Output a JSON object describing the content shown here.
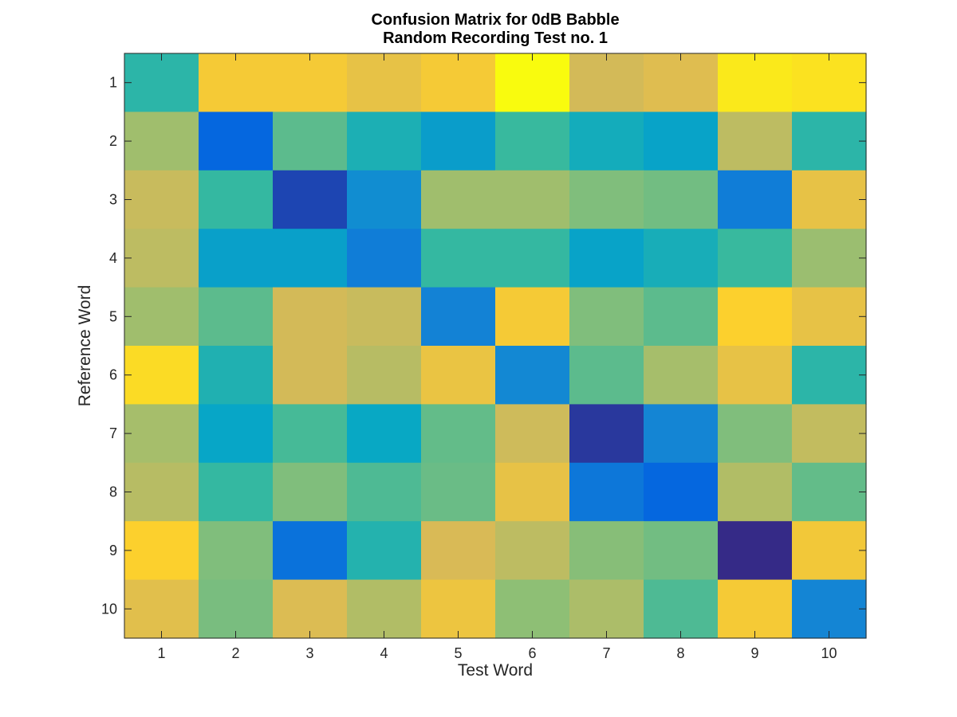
{
  "chart_data": {
    "type": "heatmap",
    "title": [
      "Confusion Matrix for 0dB Babble",
      "Random Recording Test no. 1"
    ],
    "xlabel": "Test Word",
    "ylabel": "Reference Word",
    "x_ticks": [
      "1",
      "2",
      "3",
      "4",
      "5",
      "6",
      "7",
      "8",
      "9",
      "10"
    ],
    "y_ticks": [
      "1",
      "2",
      "3",
      "4",
      "5",
      "6",
      "7",
      "8",
      "9",
      "10"
    ],
    "colormap": "parula",
    "color_range": [
      0,
      1
    ],
    "grid": false,
    "values": [
      [
        0.47,
        0.85,
        0.85,
        0.8,
        0.85,
        1.0,
        0.74,
        0.77,
        0.95,
        0.93
      ],
      [
        0.65,
        0.14,
        0.55,
        0.43,
        0.34,
        0.5,
        0.41,
        0.36,
        0.7,
        0.47
      ],
      [
        0.72,
        0.49,
        0.06,
        0.28,
        0.65,
        0.65,
        0.6,
        0.58,
        0.22,
        0.8
      ],
      [
        0.7,
        0.35,
        0.35,
        0.22,
        0.49,
        0.49,
        0.36,
        0.42,
        0.5,
        0.64
      ],
      [
        0.65,
        0.55,
        0.74,
        0.72,
        0.24,
        0.85,
        0.6,
        0.55,
        0.88,
        0.8
      ],
      [
        0.91,
        0.44,
        0.74,
        0.69,
        0.81,
        0.26,
        0.55,
        0.66,
        0.8,
        0.47
      ],
      [
        0.66,
        0.37,
        0.52,
        0.38,
        0.56,
        0.73,
        0.03,
        0.25,
        0.6,
        0.71
      ],
      [
        0.69,
        0.49,
        0.6,
        0.53,
        0.57,
        0.8,
        0.2,
        0.14,
        0.68,
        0.56
      ],
      [
        0.88,
        0.6,
        0.18,
        0.45,
        0.75,
        0.7,
        0.61,
        0.58,
        0.0,
        0.84
      ],
      [
        0.78,
        0.59,
        0.76,
        0.68,
        0.82,
        0.62,
        0.67,
        0.53,
        0.85,
        0.25
      ]
    ]
  }
}
